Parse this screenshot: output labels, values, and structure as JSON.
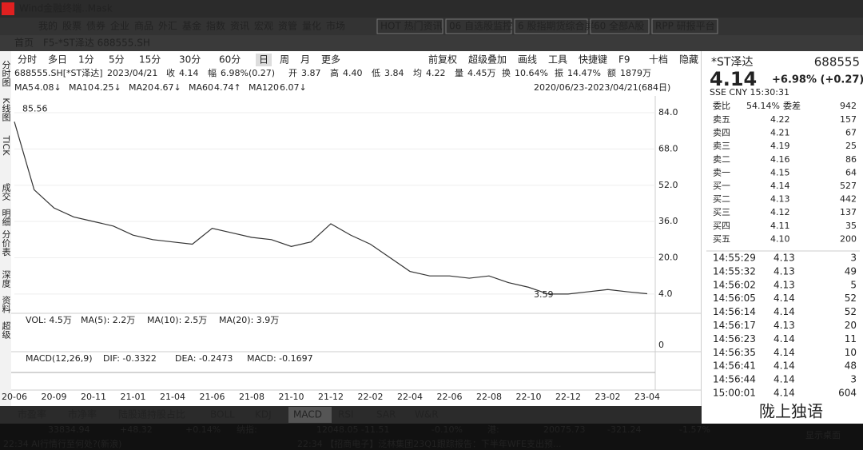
{
  "window": {
    "title": "Wind金融终端..Mask",
    "menu": [
      "我的",
      "股票",
      "债券",
      "企业",
      "商品",
      "外汇",
      "基金",
      "指数",
      "资讯",
      "宏观",
      "资管",
      "量化",
      "市场"
    ],
    "quick": [
      "HOT 热门资讯",
      "06 自选股监控",
      "6 股指期货综合屏",
      "60 全部A股",
      "RPP 研报平台"
    ]
  },
  "tabs": [
    "首页",
    "F5-*ST泽达 688555.SH"
  ],
  "periods": [
    "分时",
    "多日",
    "1分",
    "5分",
    "15分",
    "30分",
    "60分",
    "日",
    "周",
    "月",
    "更多"
  ],
  "tools": [
    "前复权",
    "超级叠加",
    "画线",
    "工具",
    "快捷键",
    "F9",
    "十档",
    "隐藏"
  ],
  "side_labels": [
    "分时图",
    "K线图",
    "TICK",
    "成交",
    "明细",
    "分价表",
    "深度",
    "资料",
    "超级"
  ],
  "quote_line": [
    [
      "688555.SH[*ST泽达]",
      ""
    ],
    [
      "2023/04/21",
      ""
    ],
    [
      "收",
      "4.14"
    ],
    [
      "幅",
      "6.98%(0.27)"
    ],
    [
      "开",
      "3.87"
    ],
    [
      "高",
      "4.40"
    ],
    [
      "低",
      "3.84"
    ],
    [
      "均",
      "4.22"
    ],
    [
      "量",
      "4.45万"
    ],
    [
      "换",
      "10.64%"
    ],
    [
      "振",
      "14.47%"
    ],
    [
      "额",
      "1879万"
    ]
  ],
  "range": "2020/06/23-2023/04/21(684日)",
  "ma": [
    {
      "name": "MA5",
      "value": "4.08↓",
      "color": "#e02020"
    },
    {
      "name": "MA10",
      "value": "4.25↓",
      "color": "#2060d0"
    },
    {
      "name": "MA20",
      "value": "4.67↓",
      "color": "#2040a0"
    },
    {
      "name": "MA60",
      "value": "4.74↑",
      "color": "#20a0d0"
    },
    {
      "name": "MA120",
      "value": "6.07↓",
      "color": "#20a040"
    }
  ],
  "chart_data": {
    "type": "line",
    "categories": [
      "20-06",
      null,
      "20-09",
      null,
      "20-11",
      null,
      "21-01",
      null,
      "21-04",
      null,
      "21-06",
      null,
      "21-08",
      null,
      "21-10",
      null,
      "21-12",
      null,
      "22-02",
      null,
      "22-04",
      null,
      "22-06",
      null,
      "22-08",
      null,
      "22-10",
      null,
      "22-12",
      null,
      "23-02",
      null,
      "23-04"
    ],
    "values": [
      80,
      50,
      42,
      38,
      36,
      34,
      30,
      28,
      27,
      26,
      33,
      31,
      29,
      28,
      25,
      27,
      35,
      30,
      26,
      20,
      14,
      12,
      12,
      11,
      12,
      9,
      7,
      4,
      4,
      5,
      6,
      5,
      4.14
    ],
    "color": "#333333",
    "ylim": [
      -4.5,
      90.7
    ],
    "yticks": [
      {
        "value": 84,
        "label": "84.0"
      },
      {
        "value": 68,
        "label": "68.0"
      },
      {
        "value": 52,
        "label": "52.0"
      },
      {
        "value": 36,
        "label": "36.0"
      },
      {
        "value": 20,
        "label": "20.0"
      },
      {
        "value": 4,
        "label": "4.0"
      }
    ],
    "annotations": [
      {
        "text": "85.56",
        "value": 85.56
      },
      {
        "text": "3.59",
        "value": 3.59
      }
    ]
  },
  "vol_line": [
    "VOL: 4.5万",
    "MA(5): 2.2万",
    "MA(10): 2.5万",
    "MA(20): 3.9万"
  ],
  "vol_tick": "0",
  "macd_line": [
    "MACD(12,26,9)",
    "DIF: -0.3322",
    "DEA: -0.2473",
    "MACD: -0.1697"
  ],
  "indicators": [
    "市盈率",
    "市净率",
    "陆股通持股占比",
    "BOLL",
    "KDJ",
    "MACD",
    "RSI",
    "SAR",
    "W&R"
  ],
  "quote": {
    "name": "*ST泽达",
    "code": "688555",
    "price": "4.14",
    "change": "+6.98% (+0.27)",
    "exchange": "SSE CNY 15:30:31",
    "wb_label": "委比",
    "wb": "54.14%",
    "wc_label": "委差",
    "wc": "942"
  },
  "book": [
    [
      "卖五",
      "4.22",
      "157"
    ],
    [
      "卖四",
      "4.21",
      "67"
    ],
    [
      "卖三",
      "4.19",
      "25"
    ],
    [
      "卖二",
      "4.16",
      "86"
    ],
    [
      "卖一",
      "4.15",
      "64"
    ],
    [
      "买一",
      "4.14",
      "527"
    ],
    [
      "买二",
      "4.13",
      "442"
    ],
    [
      "买三",
      "4.12",
      "137"
    ],
    [
      "买四",
      "4.11",
      "35"
    ],
    [
      "买五",
      "4.10",
      "200"
    ]
  ],
  "trades": [
    [
      "14:55:29",
      "4.13",
      "3"
    ],
    [
      "14:55:32",
      "4.13",
      "49"
    ],
    [
      "14:56:02",
      "4.13",
      "5"
    ],
    [
      "14:56:05",
      "4.14",
      "52"
    ],
    [
      "14:56:14",
      "4.14",
      "52"
    ],
    [
      "14:56:17",
      "4.13",
      "20"
    ],
    [
      "14:56:23",
      "4.14",
      "11"
    ],
    [
      "14:56:35",
      "4.14",
      "10"
    ],
    [
      "14:56:41",
      "4.14",
      "48"
    ],
    [
      "14:56:44",
      "4.14",
      "3"
    ],
    [
      "15:00:01",
      "4.14",
      "604"
    ]
  ],
  "index_bar": [
    "33834.94",
    "+48.32",
    "+0.14%",
    "纳指:",
    "12048.05",
    "-11.51",
    "-0.10%",
    "港:",
    "20075.73",
    "-321.24",
    "-1.57%"
  ],
  "news": [
    "22:34  AI行情行至何处?(新浪)",
    "22:34  【招商电子】泛林集团23Q1跟踪报告：下半年WFE支出预..."
  ],
  "watermark": "陇上独语",
  "taskbar": "显示桌面"
}
